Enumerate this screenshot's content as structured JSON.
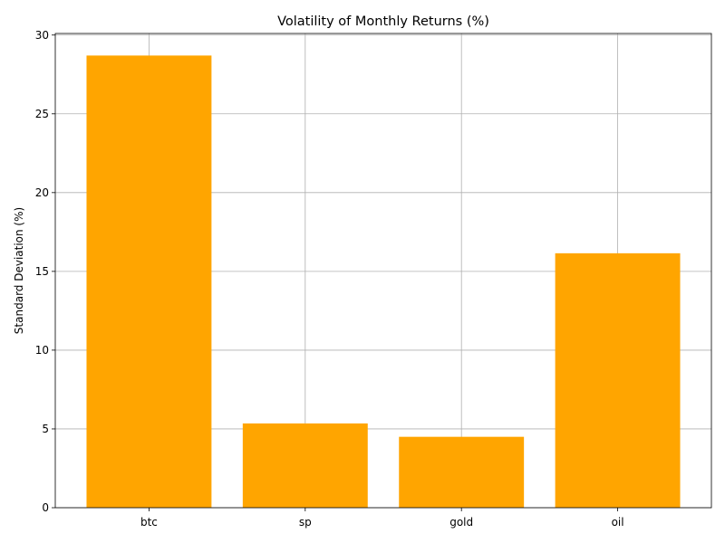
{
  "chart_data": {
    "type": "bar",
    "title": "Volatility of Monthly Returns (%)",
    "xlabel": "",
    "ylabel": "Standard Deviation (%)",
    "categories": [
      "btc",
      "sp",
      "gold",
      "oil"
    ],
    "values": [
      28.7,
      5.35,
      4.5,
      16.15
    ],
    "ylim": [
      0,
      30.1
    ],
    "yticks": [
      0,
      5,
      10,
      15,
      20,
      25,
      30
    ],
    "grid": true,
    "legend": "none",
    "colors": {
      "bar": "#FFA500",
      "grid": "#B0B0B0",
      "axis": "#000000"
    }
  }
}
